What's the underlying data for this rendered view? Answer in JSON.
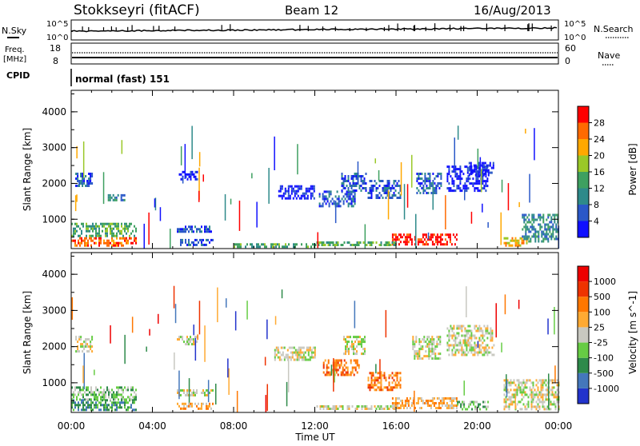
{
  "header": {
    "station": "Stokkseyri (fitACF)",
    "beam": "Beam 12",
    "date": "16/Aug/2013"
  },
  "strips": {
    "nsky_label": "N.Sky",
    "nsky_ticks": [
      "10^5",
      "10^0"
    ],
    "nsearch_label": "N.Search",
    "freq_label": "Freq.",
    "freq_unit": "[MHz]",
    "freq_ticks": [
      "18",
      "8"
    ],
    "nave_ticks": [
      "60",
      "0"
    ],
    "nave_label": "Nave",
    "cpid_label": "CPID",
    "cpid_value": "normal (fast) 151"
  },
  "chart_data": [
    {
      "type": "heatmap",
      "name": "power",
      "ylabel": "Slant Range [km]",
      "xlabel": "",
      "x_ticks": [
        "00:00",
        "04:00",
        "08:00",
        "12:00",
        "16:00",
        "20:00",
        "00:00"
      ],
      "y_ticks": [
        1000,
        2000,
        3000,
        4000
      ],
      "ylim": [
        180,
        4600
      ],
      "xlim_hours": [
        0,
        24
      ],
      "colorbar": {
        "label": "Power [dB]",
        "ticks": [
          "4",
          "8",
          "12",
          "16",
          "20",
          "24",
          "28"
        ],
        "colors": [
          "#1010ff",
          "#2a58c8",
          "#2e8a8a",
          "#3ea060",
          "#9ac828",
          "#ffa800",
          "#ff6a00",
          "#ff0000"
        ]
      },
      "regions": [
        {
          "t": [
            0.0,
            3.2
          ],
          "r": [
            250,
            500
          ],
          "level": 6
        },
        {
          "t": [
            0.0,
            3.2
          ],
          "r": [
            500,
            900
          ],
          "level": 3
        },
        {
          "t": [
            0.2,
            1.0
          ],
          "r": [
            1950,
            2300
          ],
          "level": 1
        },
        {
          "t": [
            1.8,
            2.6
          ],
          "r": [
            1500,
            1700
          ],
          "level": 2
        },
        {
          "t": [
            5.2,
            7.0
          ],
          "r": [
            650,
            820
          ],
          "level": 1
        },
        {
          "t": [
            5.2,
            7.0
          ],
          "r": [
            280,
            450
          ],
          "level": 1
        },
        {
          "t": [
            5.3,
            6.2
          ],
          "r": [
            2100,
            2350
          ],
          "level": 0
        },
        {
          "t": [
            10.2,
            12.0
          ],
          "r": [
            1600,
            1950
          ],
          "level": 0
        },
        {
          "t": [
            12.2,
            14.0
          ],
          "r": [
            1350,
            1800
          ],
          "level": 1
        },
        {
          "t": [
            13.3,
            14.5
          ],
          "r": [
            1800,
            2300
          ],
          "level": 1
        },
        {
          "t": [
            14.6,
            16.2
          ],
          "r": [
            1600,
            2100
          ],
          "level": 1
        },
        {
          "t": [
            15.8,
            19.0
          ],
          "r": [
            300,
            600
          ],
          "level": 7
        },
        {
          "t": [
            17.0,
            18.2
          ],
          "r": [
            1700,
            2300
          ],
          "level": 1
        },
        {
          "t": [
            18.5,
            20.5
          ],
          "r": [
            1800,
            2500
          ],
          "level": 0
        },
        {
          "t": [
            19.5,
            20.8
          ],
          "r": [
            2200,
            2600
          ],
          "level": 0
        },
        {
          "t": [
            21.3,
            22.5
          ],
          "r": [
            280,
            500
          ],
          "level": 5
        },
        {
          "t": [
            22.2,
            24.0
          ],
          "r": [
            400,
            1150
          ],
          "level": 2
        },
        {
          "t": [
            12.0,
            16.0
          ],
          "r": [
            250,
            380
          ],
          "level": 3
        },
        {
          "t": [
            8.0,
            12.0
          ],
          "r": [
            250,
            330
          ],
          "level": 3
        }
      ]
    },
    {
      "type": "heatmap",
      "name": "velocity",
      "ylabel": "Slant Range [km]",
      "xlabel": "Time UT",
      "x_ticks": [
        "00:00",
        "04:00",
        "08:00",
        "12:00",
        "16:00",
        "20:00",
        "00:00"
      ],
      "y_ticks": [
        1000,
        2000,
        3000,
        4000
      ],
      "ylim": [
        180,
        4600
      ],
      "xlim_hours": [
        0,
        24
      ],
      "colorbar": {
        "label": "Velocity [m s^-1]",
        "ticks": [
          "1000",
          "500",
          "100",
          "25",
          "-25",
          "-100",
          "-500",
          "-1000"
        ],
        "colors": [
          "#2233cc",
          "#4477bb",
          "#2e8a4a",
          "#66cc44",
          "#c8c8c0",
          "#ffaa33",
          "#ff7700",
          "#ee3300",
          "#ee0000"
        ]
      },
      "regions": [
        {
          "t": [
            0.0,
            3.2
          ],
          "r": [
            250,
            550
          ],
          "level": 2
        },
        {
          "t": [
            0.0,
            3.2
          ],
          "r": [
            550,
            900
          ],
          "level": 3
        },
        {
          "t": [
            0.2,
            1.0
          ],
          "r": [
            1900,
            2300
          ],
          "level": 4
        },
        {
          "t": [
            5.2,
            7.0
          ],
          "r": [
            650,
            820
          ],
          "level": 4
        },
        {
          "t": [
            5.2,
            7.0
          ],
          "r": [
            280,
            450
          ],
          "level": 5
        },
        {
          "t": [
            5.2,
            6.2
          ],
          "r": [
            2050,
            2300
          ],
          "level": 4
        },
        {
          "t": [
            10.0,
            12.0
          ],
          "r": [
            1650,
            2000
          ],
          "level": 4
        },
        {
          "t": [
            12.4,
            14.2
          ],
          "r": [
            1200,
            1650
          ],
          "level": 6
        },
        {
          "t": [
            13.4,
            14.5
          ],
          "r": [
            1800,
            2300
          ],
          "level": 4
        },
        {
          "t": [
            14.6,
            16.2
          ],
          "r": [
            800,
            1300
          ],
          "level": 6
        },
        {
          "t": [
            15.8,
            19.0
          ],
          "r": [
            300,
            600
          ],
          "level": 5
        },
        {
          "t": [
            16.8,
            18.2
          ],
          "r": [
            1700,
            2300
          ],
          "level": 4
        },
        {
          "t": [
            18.5,
            20.8
          ],
          "r": [
            1800,
            2600
          ],
          "level": 4
        },
        {
          "t": [
            19.0,
            20.5
          ],
          "r": [
            300,
            500
          ],
          "level": 3
        },
        {
          "t": [
            21.3,
            24.0
          ],
          "r": [
            300,
            1100
          ],
          "level": 4
        },
        {
          "t": [
            12.0,
            16.0
          ],
          "r": [
            250,
            380
          ],
          "level": 4
        }
      ]
    }
  ]
}
